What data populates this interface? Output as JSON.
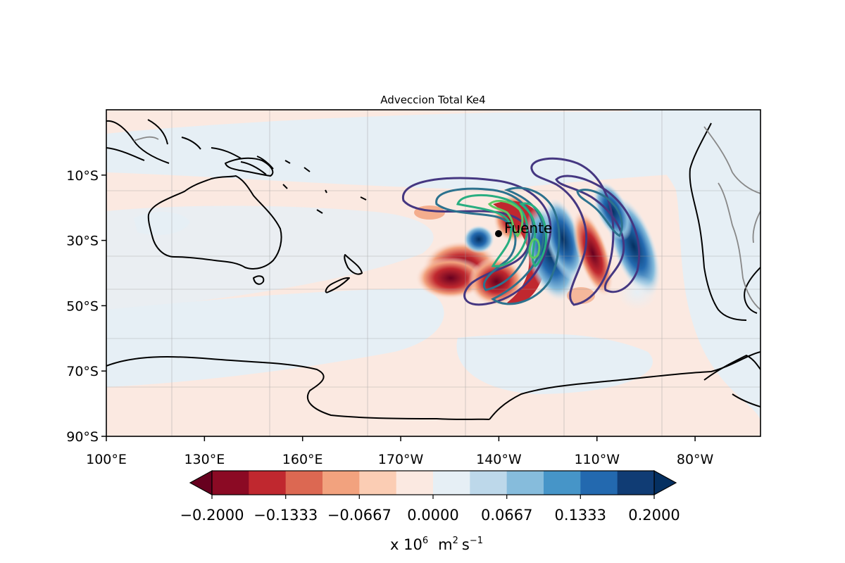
{
  "map": {
    "title": "Adveccion Total Ke4",
    "extent": {
      "lon_min": 100,
      "lon_max": 300,
      "lat_min": -90,
      "lat_max": 10
    },
    "projection": "PlateCarree",
    "grid": true,
    "ocean_fill": "#fbe9e1",
    "x_ticks": [
      {
        "lon": 100,
        "label": "100°E"
      },
      {
        "lon": 130,
        "label": "130°E"
      },
      {
        "lon": 160,
        "label": "160°E"
      },
      {
        "lon": 190,
        "label": "170°W"
      },
      {
        "lon": 220,
        "label": "140°W"
      },
      {
        "lon": 250,
        "label": "110°W"
      },
      {
        "lon": 280,
        "label": "80°W"
      }
    ],
    "y_ticks": [
      {
        "lat": -10,
        "label": "10°S"
      },
      {
        "lat": -30,
        "label": "30°S"
      },
      {
        "lat": -50,
        "label": "50°S"
      },
      {
        "lat": -70,
        "label": "70°S"
      },
      {
        "lat": -90,
        "label": "90°S"
      }
    ],
    "source_marker": {
      "lon": 220,
      "lat": -28,
      "label": "Fuente"
    },
    "line_contour_colors": [
      "#453781",
      "#2c728e",
      "#28ae80",
      "#5ec962"
    ]
  },
  "colorbar": {
    "levels": [
      -0.2,
      -0.1667,
      -0.1333,
      -0.1,
      -0.0667,
      -0.0333,
      0.0,
      0.0333,
      0.0667,
      0.1,
      0.1333,
      0.1667,
      0.2
    ],
    "colors": [
      "#8b0a24",
      "#c0282f",
      "#dc6852",
      "#f2a27e",
      "#fbcdb4",
      "#fbe9e1",
      "#e6eff5",
      "#bdd8ea",
      "#86bcdc",
      "#4695c8",
      "#2369af",
      "#103c74"
    ],
    "under_color": "#67001f",
    "over_color": "#053061",
    "tick_labels": [
      "−0.2000",
      "−0.1333",
      "−0.0667",
      "0.0000",
      "0.0667",
      "0.1333",
      "0.2000"
    ],
    "label_prefix": "x 10",
    "label_exp1": "6",
    "label_units": "m",
    "label_exp2": "2",
    "label_s": "s",
    "label_exp3": "−1"
  }
}
